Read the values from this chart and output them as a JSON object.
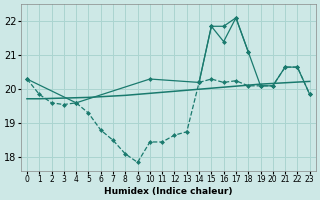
{
  "xlabel": "Humidex (Indice chaleur)",
  "xlim": [
    -0.5,
    23.5
  ],
  "ylim": [
    17.6,
    22.5
  ],
  "yticks": [
    18,
    19,
    20,
    21,
    22
  ],
  "xticks": [
    0,
    1,
    2,
    3,
    4,
    5,
    6,
    7,
    8,
    9,
    10,
    11,
    12,
    13,
    14,
    15,
    16,
    17,
    18,
    19,
    20,
    21,
    22,
    23
  ],
  "bg_color": "#cde8e6",
  "grid_color": "#aad4d0",
  "line_color": "#1a7a6e",
  "line1_x": [
    0,
    1,
    2,
    3,
    4,
    5,
    6,
    7,
    8,
    9,
    10,
    11,
    12,
    13,
    14
  ],
  "line1_y": [
    20.3,
    19.85,
    19.6,
    19.55,
    19.6,
    19.3,
    18.8,
    18.5,
    18.1,
    17.85,
    18.45,
    18.45,
    18.65,
    18.75,
    20.2
  ],
  "line2_x": [
    0,
    4,
    10,
    14,
    15,
    16,
    17,
    18,
    19,
    20,
    21,
    22,
    23
  ],
  "line2_y": [
    20.3,
    19.6,
    20.3,
    20.2,
    21.85,
    21.85,
    22.1,
    21.1,
    20.1,
    20.1,
    20.65,
    20.65,
    19.85
  ],
  "line3_x": [
    14,
    15,
    16,
    17,
    18
  ],
  "line3_y": [
    20.2,
    21.85,
    21.4,
    22.1,
    21.1
  ],
  "line4_x": [
    0,
    1,
    2,
    3,
    4,
    5,
    6,
    7,
    8,
    9,
    10,
    11,
    12,
    13,
    14,
    15,
    16,
    17,
    18,
    19,
    20,
    21,
    22,
    23
  ],
  "line4_y": [
    19.72,
    19.72,
    19.73,
    19.74,
    19.75,
    19.76,
    19.78,
    19.8,
    19.82,
    19.85,
    19.88,
    19.91,
    19.94,
    19.97,
    20.0,
    20.03,
    20.06,
    20.09,
    20.12,
    20.15,
    20.17,
    20.19,
    20.21,
    20.23
  ],
  "line5_x": [
    14,
    15,
    16,
    17,
    18,
    19,
    20,
    21,
    22,
    23
  ],
  "line5_y": [
    20.2,
    20.3,
    20.2,
    20.25,
    20.1,
    20.1,
    20.1,
    20.65,
    20.65,
    19.85
  ]
}
